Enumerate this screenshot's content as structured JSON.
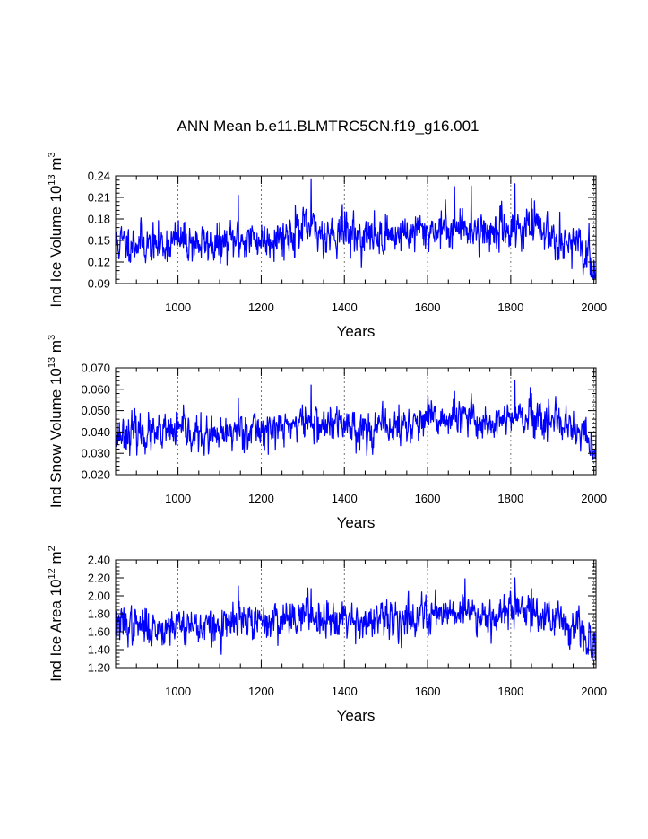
{
  "figure": {
    "title": "ANN Mean b.e11.BLMTRC5CN.f19_g16.001",
    "line_color": "#0000ff",
    "grid_color": "#555555"
  },
  "chart_data": [
    {
      "type": "line",
      "title": "",
      "xlabel": "Years",
      "ylabel_prefix": "Ind Ice Volume 10",
      "ylabel_exp1": "13",
      "ylabel_unit": " m",
      "ylabel_exp2": "3",
      "xlim": [
        850,
        2005
      ],
      "ylim": [
        0.09,
        0.24
      ],
      "xticks": [
        1000,
        1200,
        1400,
        1600,
        1800,
        2000
      ],
      "xtick_labels": [
        "1000",
        "1200",
        "1400",
        "1600",
        "1800",
        "2000"
      ],
      "yticks": [
        0.09,
        0.12,
        0.15,
        0.18,
        0.21,
        0.24
      ],
      "ytick_labels": [
        "0.09",
        "0.12",
        "0.15",
        "0.18",
        "0.21",
        "0.24"
      ],
      "grid_x": [
        1000,
        1200,
        1400,
        1600,
        1800,
        2000
      ],
      "x_start": 850,
      "x_end": 2005,
      "series": [
        {
          "name": "Ind Ice Volume",
          "anchors": [
            [
              850,
              0.146
            ],
            [
              900,
              0.148
            ],
            [
              950,
              0.143
            ],
            [
              1000,
              0.15
            ],
            [
              1050,
              0.146
            ],
            [
              1100,
              0.143
            ],
            [
              1150,
              0.152
            ],
            [
              1200,
              0.151
            ],
            [
              1250,
              0.156
            ],
            [
              1300,
              0.165
            ],
            [
              1350,
              0.16
            ],
            [
              1400,
              0.162
            ],
            [
              1450,
              0.154
            ],
            [
              1500,
              0.157
            ],
            [
              1550,
              0.161
            ],
            [
              1600,
              0.164
            ],
            [
              1650,
              0.168
            ],
            [
              1700,
              0.166
            ],
            [
              1750,
              0.161
            ],
            [
              1800,
              0.168
            ],
            [
              1850,
              0.167
            ],
            [
              1900,
              0.158
            ],
            [
              1930,
              0.151
            ],
            [
              1960,
              0.14
            ],
            [
              1985,
              0.126
            ],
            [
              2005,
              0.11
            ]
          ],
          "noise_sd": 0.0135,
          "seed": 11,
          "spikes": [
            [
              1145,
              0.213
            ],
            [
              1282,
              0.199
            ],
            [
              1320,
              0.236
            ],
            [
              1395,
              0.2
            ],
            [
              1665,
              0.225
            ],
            [
              1705,
              0.226
            ],
            [
              1810,
              0.229
            ],
            [
              1850,
              0.208
            ]
          ]
        }
      ]
    },
    {
      "type": "line",
      "title": "",
      "xlabel": "Years",
      "ylabel_prefix": "Ind Snow Volume 10",
      "ylabel_exp1": "13",
      "ylabel_unit": " m",
      "ylabel_exp2": "3",
      "xlim": [
        850,
        2005
      ],
      "ylim": [
        0.02,
        0.07
      ],
      "xticks": [
        1000,
        1200,
        1400,
        1600,
        1800,
        2000
      ],
      "xtick_labels": [
        "1000",
        "1200",
        "1400",
        "1600",
        "1800",
        "2000"
      ],
      "yticks": [
        0.02,
        0.03,
        0.04,
        0.05,
        0.06,
        0.07
      ],
      "ytick_labels": [
        "0.020",
        "0.030",
        "0.040",
        "0.050",
        "0.060",
        "0.070"
      ],
      "grid_x": [
        1000,
        1200,
        1400,
        1600,
        1800,
        2000
      ],
      "x_start": 850,
      "x_end": 2005,
      "series": [
        {
          "name": "Ind Snow Volume",
          "anchors": [
            [
              850,
              0.039
            ],
            [
              900,
              0.04
            ],
            [
              950,
              0.038
            ],
            [
              1000,
              0.041
            ],
            [
              1050,
              0.038
            ],
            [
              1100,
              0.037
            ],
            [
              1150,
              0.042
            ],
            [
              1200,
              0.041
            ],
            [
              1250,
              0.042
            ],
            [
              1300,
              0.045
            ],
            [
              1350,
              0.043
            ],
            [
              1400,
              0.044
            ],
            [
              1450,
              0.041
            ],
            [
              1500,
              0.042
            ],
            [
              1550,
              0.043
            ],
            [
              1600,
              0.045
            ],
            [
              1650,
              0.046
            ],
            [
              1700,
              0.046
            ],
            [
              1750,
              0.044
            ],
            [
              1800,
              0.046
            ],
            [
              1850,
              0.046
            ],
            [
              1900,
              0.043
            ],
            [
              1930,
              0.042
            ],
            [
              1960,
              0.04
            ],
            [
              1985,
              0.036
            ],
            [
              2005,
              0.029
            ]
          ],
          "noise_sd": 0.0042,
          "seed": 23,
          "spikes": [
            [
              1145,
              0.056
            ],
            [
              1320,
              0.062
            ],
            [
              1665,
              0.059
            ],
            [
              1705,
              0.058
            ],
            [
              1810,
              0.064
            ],
            [
              1850,
              0.058
            ]
          ]
        }
      ]
    },
    {
      "type": "line",
      "title": "",
      "xlabel": "Years",
      "ylabel_prefix": "Ind Ice Area 10",
      "ylabel_exp1": "12",
      "ylabel_unit": " m",
      "ylabel_exp2": "2",
      "xlim": [
        850,
        2005
      ],
      "ylim": [
        1.2,
        2.4
      ],
      "xticks": [
        1000,
        1200,
        1400,
        1600,
        1800,
        2000
      ],
      "xtick_labels": [
        "1000",
        "1200",
        "1400",
        "1600",
        "1800",
        "2000"
      ],
      "yticks": [
        1.2,
        1.4,
        1.6,
        1.8,
        2.0,
        2.2,
        2.4
      ],
      "ytick_labels": [
        "1.20",
        "1.40",
        "1.60",
        "1.80",
        "2.00",
        "2.20",
        "2.40"
      ],
      "grid_x": [
        1000,
        1200,
        1400,
        1600,
        1800,
        2000
      ],
      "x_start": 850,
      "x_end": 2005,
      "series": [
        {
          "name": "Ind Ice Area",
          "anchors": [
            [
              850,
              1.68
            ],
            [
              900,
              1.67
            ],
            [
              950,
              1.63
            ],
            [
              1000,
              1.7
            ],
            [
              1050,
              1.66
            ],
            [
              1100,
              1.63
            ],
            [
              1150,
              1.72
            ],
            [
              1200,
              1.7
            ],
            [
              1250,
              1.74
            ],
            [
              1300,
              1.8
            ],
            [
              1350,
              1.76
            ],
            [
              1400,
              1.78
            ],
            [
              1450,
              1.7
            ],
            [
              1500,
              1.72
            ],
            [
              1550,
              1.76
            ],
            [
              1600,
              1.8
            ],
            [
              1650,
              1.84
            ],
            [
              1700,
              1.83
            ],
            [
              1750,
              1.78
            ],
            [
              1800,
              1.85
            ],
            [
              1850,
              1.84
            ],
            [
              1900,
              1.75
            ],
            [
              1930,
              1.72
            ],
            [
              1960,
              1.62
            ],
            [
              1985,
              1.5
            ],
            [
              2005,
              1.35
            ]
          ],
          "noise_sd": 0.1,
          "seed": 37,
          "spikes": [
            [
              1145,
              2.11
            ],
            [
              1320,
              2.08
            ],
            [
              1690,
              2.19
            ],
            [
              1810,
              2.2
            ],
            [
              1850,
              2.08
            ]
          ]
        }
      ]
    }
  ]
}
